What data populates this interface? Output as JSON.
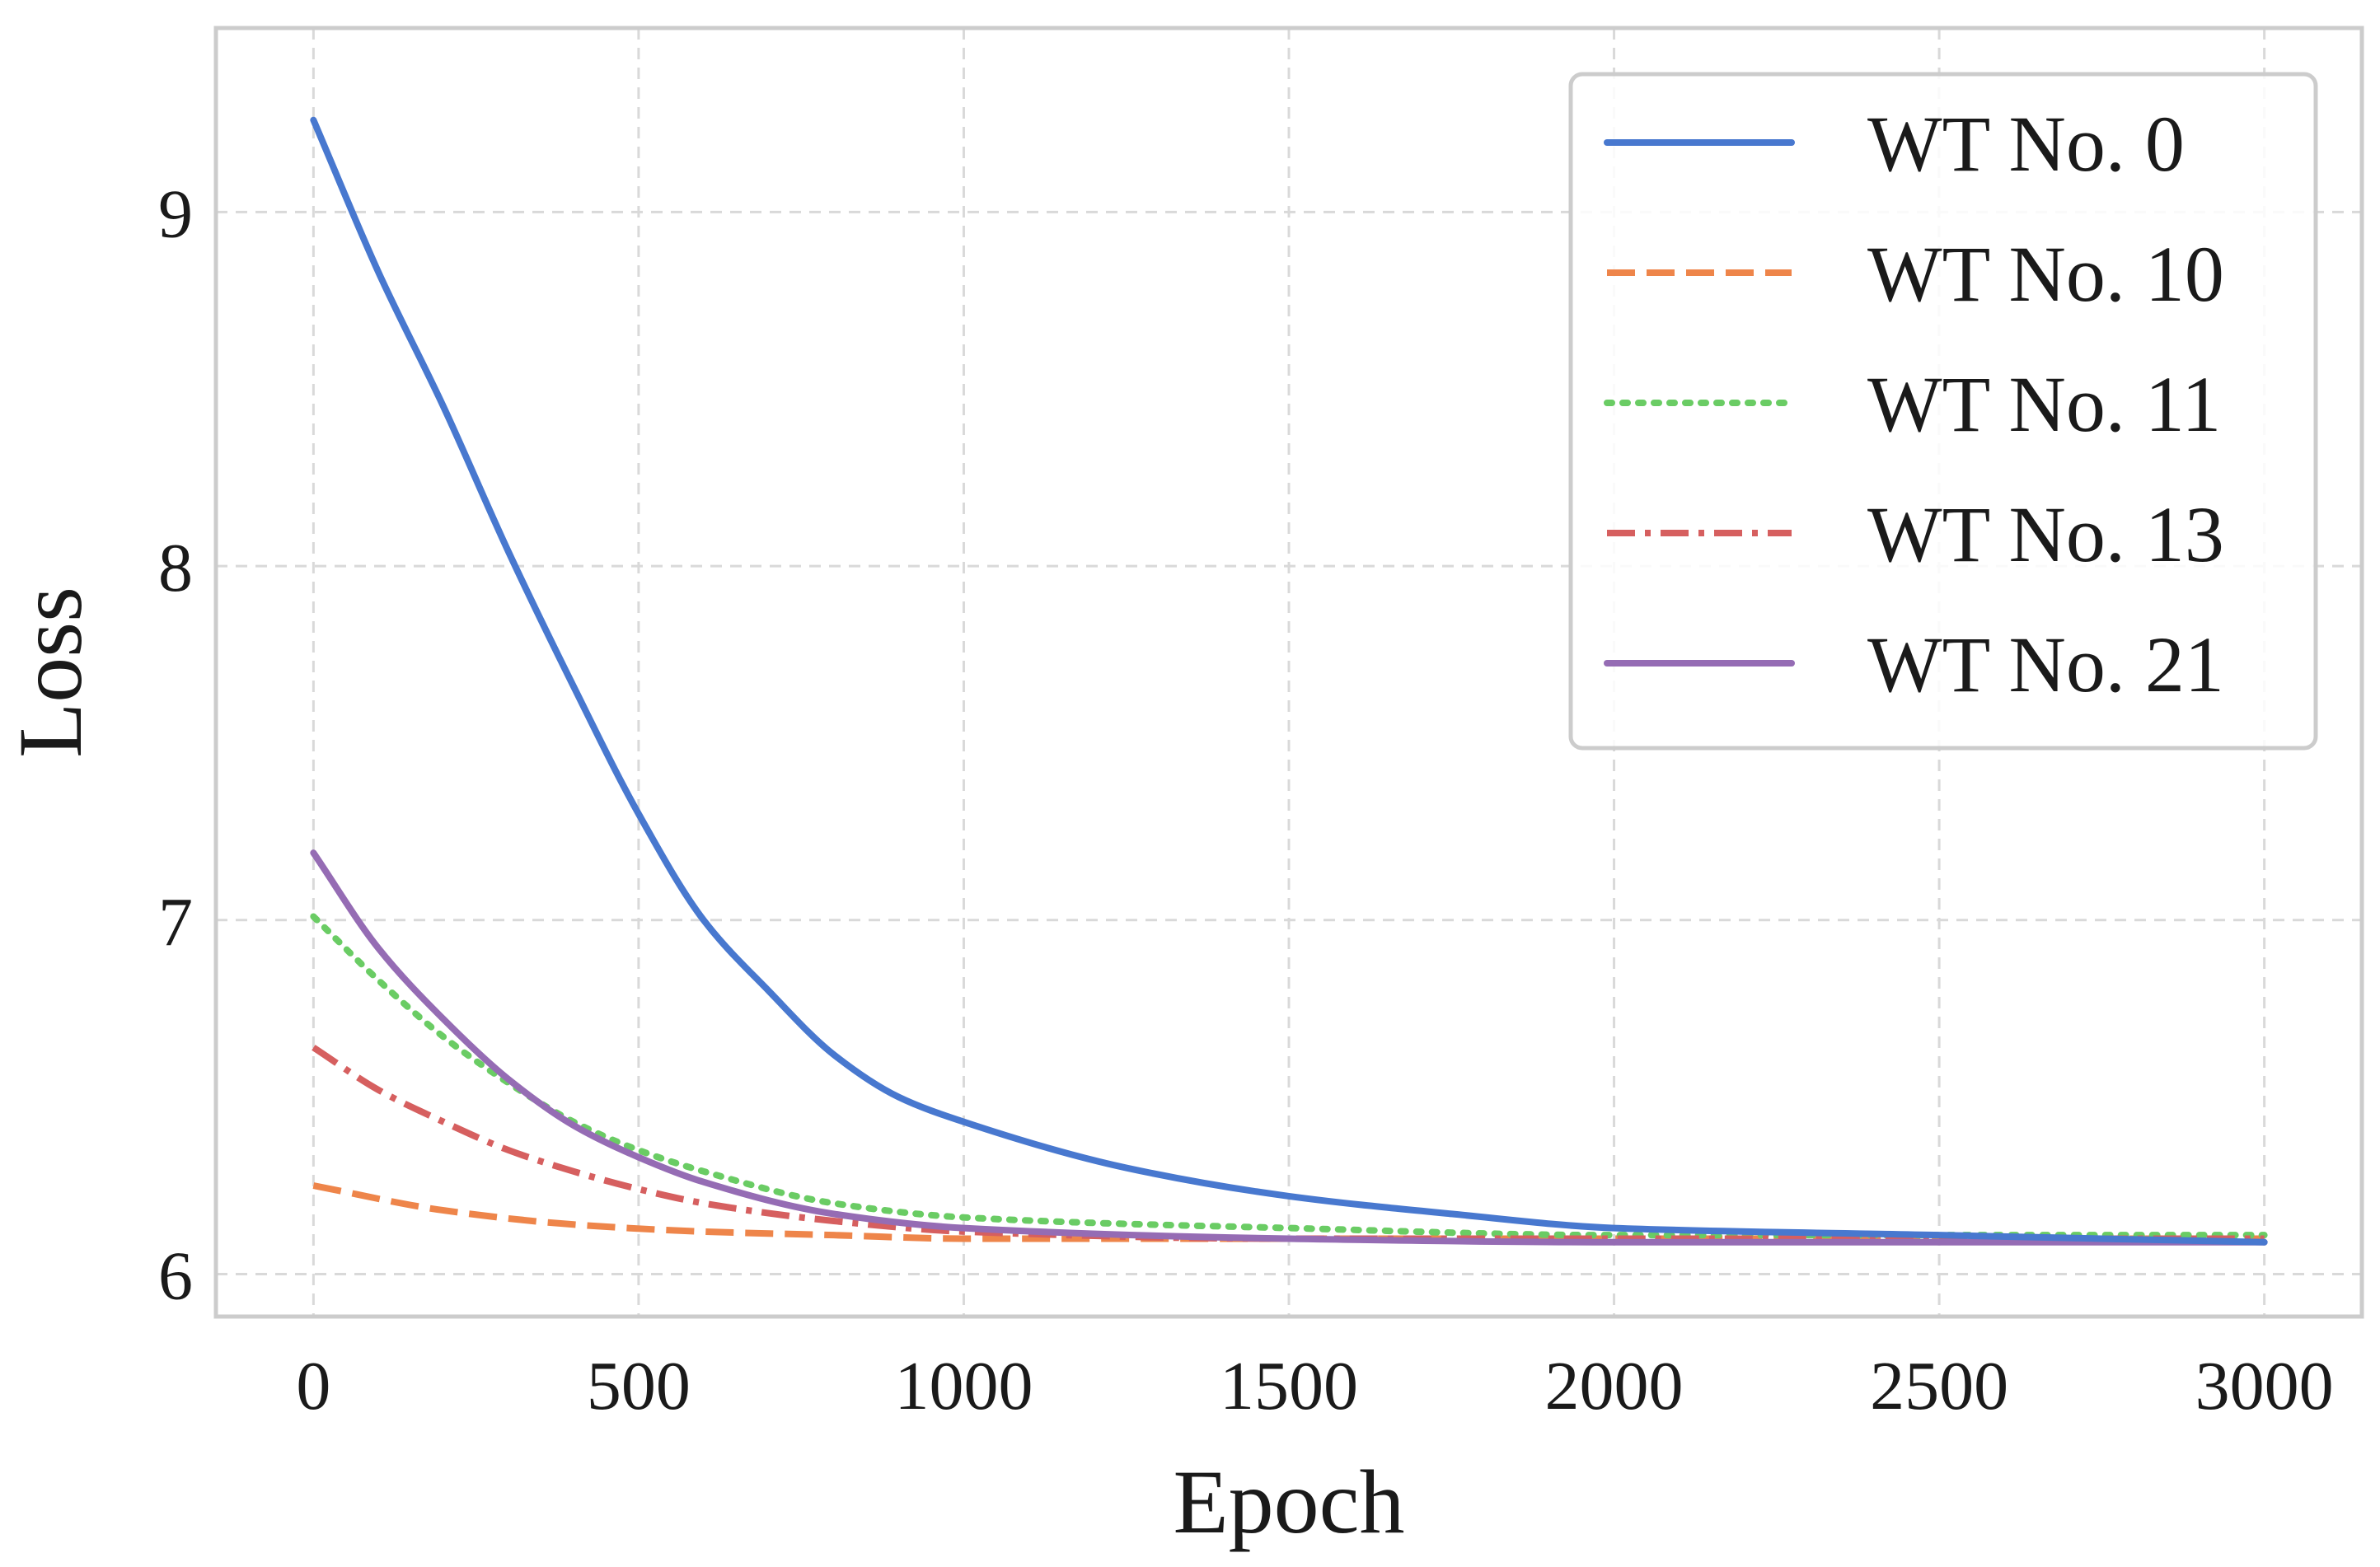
{
  "chart_data": {
    "type": "line",
    "title": "",
    "xlabel": "Epoch",
    "ylabel": "Loss",
    "xlim": [
      -150,
      3150
    ],
    "ylim": [
      5.88,
      9.52
    ],
    "xticks": [
      0,
      500,
      1000,
      1500,
      2000,
      2500,
      3000
    ],
    "xtick_labels": [
      "0",
      "500",
      "1000",
      "1500",
      "2000",
      "2500",
      "3000"
    ],
    "yticks": [
      6,
      7,
      8,
      9
    ],
    "ytick_labels": [
      "6",
      "7",
      "8",
      "9"
    ],
    "grid": true,
    "legend_position": "top-right",
    "series": [
      {
        "name": "WT No. 0",
        "color": "#4878cf",
        "style": "solid",
        "x": [
          0,
          100,
          200,
          300,
          400,
          500,
          600,
          700,
          800,
          900,
          1000,
          1250,
          1500,
          1750,
          2000,
          2500,
          3000
        ],
        "values": [
          9.26,
          8.83,
          8.45,
          8.04,
          7.66,
          7.3,
          7.0,
          6.8,
          6.62,
          6.5,
          6.43,
          6.3,
          6.22,
          6.17,
          6.13,
          6.11,
          6.09
        ]
      },
      {
        "name": "WT No. 10",
        "color": "#ee854a",
        "style": "dashed",
        "x": [
          0,
          200,
          400,
          600,
          800,
          1000,
          1500,
          2000,
          2500,
          3000
        ],
        "values": [
          6.25,
          6.18,
          6.14,
          6.12,
          6.11,
          6.1,
          6.1,
          6.1,
          6.1,
          6.1
        ]
      },
      {
        "name": "WT No. 11",
        "color": "#6acc64",
        "style": "dotted",
        "x": [
          0,
          100,
          200,
          300,
          400,
          500,
          600,
          800,
          1000,
          1500,
          2000,
          2500,
          3000
        ],
        "values": [
          7.01,
          6.83,
          6.67,
          6.54,
          6.43,
          6.35,
          6.29,
          6.2,
          6.16,
          6.13,
          6.11,
          6.11,
          6.11
        ]
      },
      {
        "name": "WT No. 13",
        "color": "#d65f5f",
        "style": "dashdot",
        "x": [
          0,
          100,
          200,
          300,
          400,
          500,
          600,
          800,
          1000,
          1500,
          2000,
          2500,
          3000
        ],
        "values": [
          6.64,
          6.52,
          6.43,
          6.35,
          6.29,
          6.24,
          6.2,
          6.15,
          6.12,
          6.1,
          6.1,
          6.1,
          6.1
        ]
      },
      {
        "name": "WT No. 21",
        "color": "#956cb4",
        "style": "solid",
        "x": [
          0,
          100,
          200,
          300,
          400,
          500,
          600,
          800,
          1000,
          1500,
          2000,
          2500,
          3000
        ],
        "values": [
          7.19,
          6.92,
          6.72,
          6.55,
          6.42,
          6.33,
          6.26,
          6.17,
          6.13,
          6.1,
          6.09,
          6.09,
          6.09
        ]
      }
    ]
  }
}
